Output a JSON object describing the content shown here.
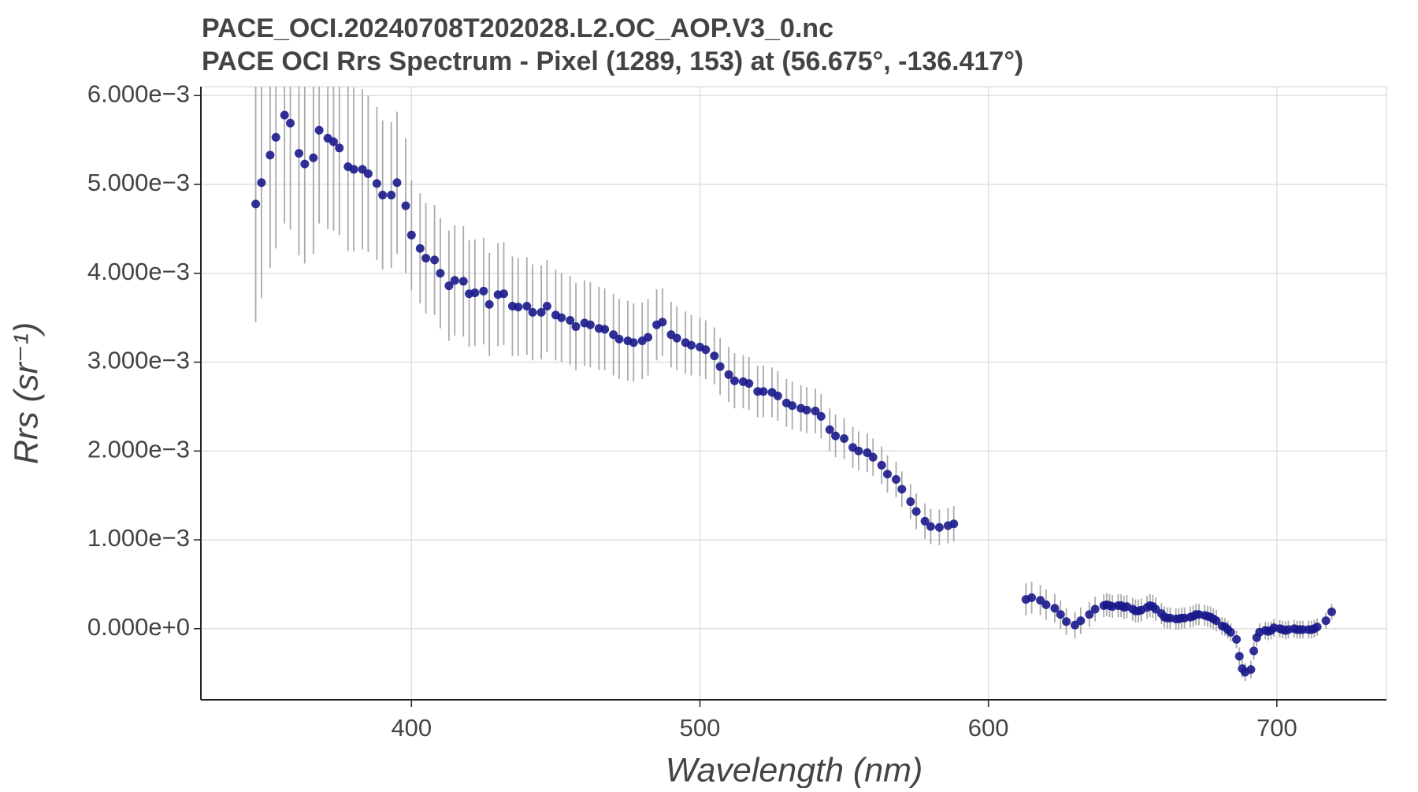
{
  "chart_data": {
    "type": "errorbar-scatter",
    "title": "PACE_OCI.20240708T202028.L2.OC_AOP.V3_0.nc",
    "subtitle": "PACE OCI Rrs Spectrum - Pixel (1289, 153) at (56.675°, -136.417°)",
    "x_label": "Wavelength (nm)",
    "y_label": "Rrs (sr⁻¹)",
    "color": "#1a1a8c",
    "error_color": "#aaaaaa",
    "grid": true,
    "xlim": [
      327,
      738
    ],
    "ylim": [
      -0.0008,
      0.0061
    ],
    "xticks": [
      400,
      500,
      600,
      700
    ],
    "yticks": [
      {
        "value": 0.006,
        "label": "6.000e−3"
      },
      {
        "value": 0.005,
        "label": "5.000e−3"
      },
      {
        "value": 0.004,
        "label": "4.000e−3"
      },
      {
        "value": 0.003,
        "label": "3.000e−3"
      },
      {
        "value": 0.002,
        "label": "2.000e−3"
      },
      {
        "value": 0.001,
        "label": "1.000e−3"
      },
      {
        "value": 0,
        "label": "0.000e+0"
      }
    ],
    "x": [
      346,
      348,
      351,
      353,
      356,
      358,
      361,
      363,
      366,
      368,
      371,
      373,
      375,
      378,
      380,
      383,
      385,
      388,
      390,
      393,
      395,
      398,
      400,
      403,
      405,
      408,
      410,
      413,
      415,
      418,
      420,
      422,
      425,
      427,
      430,
      432,
      435,
      437,
      440,
      442,
      445,
      447,
      450,
      452,
      455,
      457,
      460,
      462,
      465,
      467,
      470,
      472,
      475,
      477,
      480,
      482,
      485,
      487,
      490,
      492,
      495,
      497,
      500,
      502,
      505,
      507,
      510,
      512,
      515,
      517,
      520,
      522,
      525,
      527,
      530,
      532,
      535,
      537,
      540,
      542,
      545,
      547,
      550,
      553,
      555,
      558,
      560,
      563,
      565,
      568,
      570,
      573,
      575,
      578,
      580,
      583,
      586,
      588,
      613,
      615,
      618,
      620,
      623,
      625,
      627,
      630,
      632,
      635,
      637,
      640,
      641,
      642,
      643,
      645,
      646,
      647,
      648,
      650,
      651,
      652,
      653,
      655,
      656,
      657,
      658,
      660,
      661,
      662,
      663,
      665,
      666,
      667,
      668,
      670,
      671,
      672,
      673,
      675,
      676,
      677,
      678,
      679,
      681,
      682,
      683,
      684,
      686,
      687,
      688,
      689,
      691,
      692,
      693,
      694,
      696,
      697,
      698,
      699,
      701,
      702,
      703,
      704,
      706,
      707,
      708,
      709,
      711,
      712,
      713,
      714,
      717,
      719
    ],
    "values": [
      0.00478,
      0.00502,
      0.00533,
      0.00553,
      0.00578,
      0.00569,
      0.00535,
      0.00523,
      0.0053,
      0.00561,
      0.00552,
      0.00548,
      0.00541,
      0.0052,
      0.00517,
      0.00517,
      0.00512,
      0.00501,
      0.00488,
      0.00488,
      0.00502,
      0.00476,
      0.00443,
      0.00428,
      0.00417,
      0.00415,
      0.004,
      0.00386,
      0.00392,
      0.00391,
      0.00377,
      0.00378,
      0.0038,
      0.00365,
      0.00376,
      0.00377,
      0.00363,
      0.00362,
      0.00363,
      0.00356,
      0.00356,
      0.00363,
      0.00353,
      0.0035,
      0.00347,
      0.0034,
      0.00344,
      0.00342,
      0.00338,
      0.00337,
      0.00331,
      0.00326,
      0.00324,
      0.00322,
      0.00324,
      0.00328,
      0.00342,
      0.00345,
      0.00331,
      0.00327,
      0.00322,
      0.00319,
      0.00317,
      0.00314,
      0.00307,
      0.00295,
      0.00286,
      0.00279,
      0.00278,
      0.00276,
      0.00267,
      0.00267,
      0.00266,
      0.00262,
      0.00254,
      0.00251,
      0.00248,
      0.00246,
      0.00245,
      0.00239,
      0.00224,
      0.00217,
      0.00214,
      0.00204,
      0.002,
      0.00198,
      0.00193,
      0.00184,
      0.00174,
      0.00168,
      0.00157,
      0.00143,
      0.00132,
      0.00121,
      0.00115,
      0.00114,
      0.00116,
      0.00118,
      0.00033,
      0.00035,
      0.00032,
      0.00027,
      0.00023,
      0.00016,
      8e-05,
      4e-05,
      9e-05,
      0.00016,
      0.00022,
      0.00026,
      0.00027,
      0.00026,
      0.00025,
      0.00026,
      0.00026,
      0.00024,
      0.00025,
      0.00022,
      0.0002,
      0.0002,
      0.00021,
      0.00024,
      0.00026,
      0.00025,
      0.00022,
      0.00017,
      0.00013,
      0.00012,
      0.00012,
      0.00011,
      0.00011,
      0.00012,
      0.00012,
      0.00013,
      0.00014,
      0.00016,
      0.00016,
      0.00015,
      0.00014,
      0.00013,
      0.00011,
      9e-05,
      3e-05,
      2e-05,
      -1e-05,
      -4e-05,
      -0.00012,
      -0.00031,
      -0.00045,
      -0.00049,
      -0.00046,
      -0.00025,
      -0.0001,
      -4e-05,
      -2e-05,
      -3e-05,
      -2e-05,
      1e-05,
      0,
      -1e-05,
      -2e-05,
      -1e-05,
      0,
      -1e-05,
      -1e-05,
      -1e-05,
      -1e-05,
      -1e-05,
      0,
      2e-05,
      9e-05,
      0.00019
    ],
    "errors": [
      0.00133,
      0.0013,
      0.00127,
      0.00125,
      0.00122,
      0.0012,
      0.00115,
      0.00112,
      0.00108,
      0.00105,
      0.00102,
      0.001,
      0.00098,
      0.00095,
      0.00092,
      0.0009,
      0.00088,
      0.00086,
      0.00084,
      0.00082,
      0.0008,
      0.00076,
      0.00062,
      0.00062,
      0.00062,
      0.00062,
      0.00062,
      0.00062,
      0.00062,
      0.00062,
      0.0006,
      0.0006,
      0.0006,
      0.00058,
      0.00058,
      0.00058,
      0.00056,
      0.00055,
      0.00055,
      0.00054,
      0.00053,
      0.00052,
      0.00051,
      0.0005,
      0.0005,
      0.00049,
      0.00048,
      0.00048,
      0.00047,
      0.00046,
      0.00046,
      0.00045,
      0.00045,
      0.00044,
      0.00043,
      0.00043,
      0.0004,
      0.00038,
      0.00037,
      0.00036,
      0.00035,
      0.00034,
      0.00033,
      0.00033,
      0.00032,
      0.00032,
      0.00031,
      0.00031,
      0.0003,
      0.0003,
      0.00029,
      0.00029,
      0.00028,
      0.00028,
      0.00027,
      0.00027,
      0.00026,
      0.00026,
      0.00025,
      0.00025,
      0.00024,
      0.00024,
      0.00023,
      0.00023,
      0.00022,
      0.00022,
      0.00021,
      0.00021,
      0.00021,
      0.0002,
      0.0002,
      0.0002,
      0.0002,
      0.0002,
      0.0002,
      0.0002,
      0.0002,
      0.0002,
      0.00018,
      0.00018,
      0.00017,
      0.00017,
      0.00016,
      0.00016,
      0.00015,
      0.00015,
      0.00015,
      0.00014,
      0.00014,
      0.00013,
      0.00013,
      0.00013,
      0.00013,
      0.00013,
      0.00013,
      0.00013,
      0.00013,
      0.00013,
      0.00013,
      0.00013,
      0.00013,
      0.00013,
      0.00013,
      0.00013,
      0.00013,
      0.00012,
      0.00012,
      0.00012,
      0.00012,
      0.00012,
      0.00012,
      0.00012,
      0.00012,
      0.00012,
      0.00012,
      0.00012,
      0.00012,
      0.00012,
      0.00012,
      0.00012,
      0.00012,
      0.00012,
      0.0001,
      0.0001,
      0.0001,
      0.0001,
      0.0001,
      0.0001,
      0.0001,
      0.0001,
      0.0001,
      0.0001,
      0.0001,
      0.0001,
      0.0001,
      0.0001,
      0.0001,
      0.0001,
      0.0001,
      0.0001,
      0.0001,
      0.0001,
      0.0001,
      0.0001,
      0.0001,
      0.0001,
      0.0001,
      0.0001,
      0.0001,
      0.0001,
      9e-05,
      9e-05
    ]
  }
}
